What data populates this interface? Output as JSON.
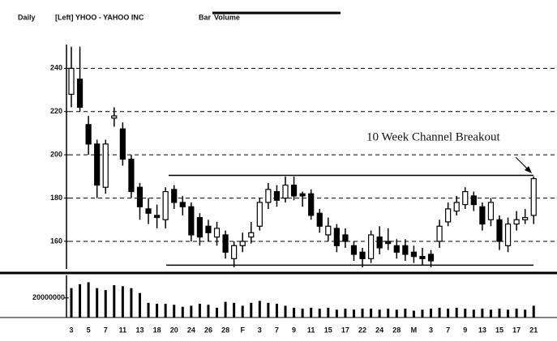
{
  "chart_data": {
    "type": "candlestick",
    "header": [
      "Daily",
      "[Left] YHOO - YAHOO INC",
      "Bar",
      "Volume"
    ],
    "annotation": "10 Week Channel Breakout",
    "categories": [
      "3",
      null,
      "5",
      null,
      "7",
      null,
      "11",
      null,
      "13",
      null,
      "18",
      null,
      "20",
      null,
      "24",
      null,
      "26",
      null,
      "28",
      null,
      "F",
      null,
      "3",
      null,
      "7",
      null,
      "9",
      null,
      "11",
      null,
      "15",
      null,
      "17",
      null,
      "22",
      null,
      "24",
      null,
      "28",
      null,
      "M",
      null,
      "3",
      null,
      "7",
      null,
      "9",
      null,
      "13",
      null,
      "15",
      null,
      "17",
      null,
      "21"
    ],
    "ohlc": {
      "open": [
        228,
        235,
        214,
        205,
        185,
        217,
        212,
        198,
        185,
        175,
        172,
        170,
        184,
        178,
        176,
        171,
        167,
        162,
        163,
        152,
        158,
        162,
        167,
        178,
        183,
        180,
        186,
        182,
        182,
        173,
        163,
        166,
        163,
        158,
        155,
        152,
        162,
        160,
        158,
        158,
        155,
        153,
        154,
        160,
        169,
        174,
        177,
        181,
        176,
        170,
        170,
        158,
        168,
        170,
        172
      ],
      "high": [
        250,
        250,
        218,
        207,
        207,
        222,
        215,
        200,
        187,
        180,
        177,
        185,
        186,
        181,
        178,
        173,
        170,
        169,
        165,
        160,
        164,
        169,
        180,
        187,
        186,
        190,
        190,
        183,
        184,
        175,
        171,
        168,
        166,
        160,
        157,
        165,
        167,
        166,
        161,
        161,
        158,
        157,
        156,
        170,
        178,
        181,
        185,
        183,
        178,
        180,
        172,
        171,
        174,
        175,
        190
      ],
      "low": [
        222,
        220,
        200,
        180,
        182,
        213,
        195,
        180,
        170,
        168,
        166,
        166,
        175,
        172,
        160,
        158,
        160,
        158,
        152,
        148,
        155,
        159,
        165,
        175,
        176,
        178,
        179,
        176,
        170,
        164,
        160,
        155,
        157,
        151,
        148,
        150,
        154,
        156,
        152,
        151,
        150,
        149,
        148,
        157,
        167,
        172,
        175,
        174,
        165,
        167,
        156,
        155,
        165,
        168,
        168
      ],
      "close": [
        240,
        222,
        205,
        186,
        205,
        218,
        198,
        183,
        176,
        173,
        171,
        183,
        178,
        176,
        163,
        162,
        164,
        166,
        155,
        158,
        160,
        164,
        178,
        184,
        179,
        186,
        181,
        181,
        172,
        167,
        167,
        158,
        160,
        154,
        152,
        163,
        157,
        159,
        155,
        154,
        153,
        152,
        151,
        167,
        175,
        178,
        183,
        177,
        168,
        178,
        160,
        168,
        170,
        171,
        189
      ]
    },
    "ylim": [
      148,
      251
    ],
    "yticks": [
      160,
      180,
      200,
      220,
      240
    ],
    "grid": true,
    "channel": {
      "upper": 190.5,
      "lower": 149
    },
    "up_color": "#ffffff",
    "down_color": "#000000",
    "volume": {
      "values": [
        30000000,
        34000000,
        36000000,
        30000000,
        28000000,
        33000000,
        32000000,
        30000000,
        25000000,
        15000000,
        14000000,
        14000000,
        13000000,
        11000000,
        12000000,
        14000000,
        13000000,
        10000000,
        16000000,
        15000000,
        12000000,
        15000000,
        17000000,
        15000000,
        14000000,
        12000000,
        10000000,
        9000000,
        10000000,
        9000000,
        10000000,
        8000000,
        9000000,
        8000000,
        9000000,
        9000000,
        8000000,
        9000000,
        8000000,
        9000000,
        7000000,
        8000000,
        9000000,
        10000000,
        9000000,
        10000000,
        9000000,
        8000000,
        9000000,
        8000000,
        9000000,
        8000000,
        9000000,
        8000000,
        12000000
      ],
      "ylim": [
        0,
        43000000
      ],
      "yticks": [
        20000000
      ],
      "color": "#000000"
    }
  }
}
